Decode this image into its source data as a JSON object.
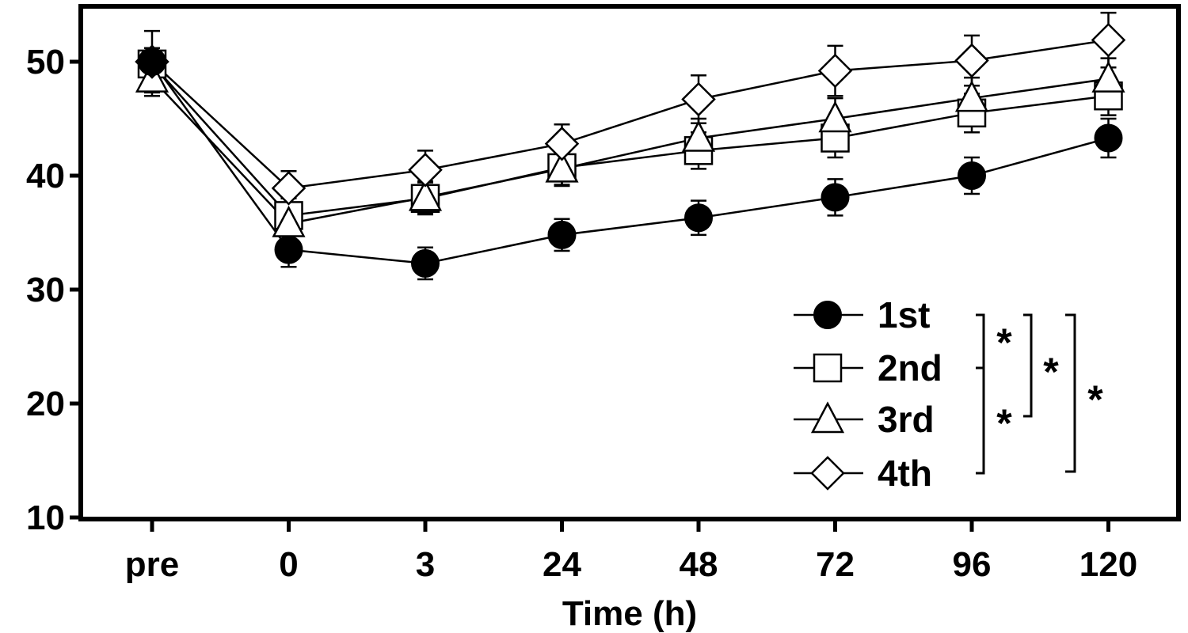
{
  "chart_data": {
    "type": "line",
    "title": "",
    "xlabel": "Time (h)",
    "ylabel": "",
    "categories": [
      "pre",
      "0",
      "3",
      "24",
      "48",
      "72",
      "96",
      "120"
    ],
    "ylim": [
      10,
      55
    ],
    "yticks": [
      10,
      20,
      30,
      40,
      50
    ],
    "grid": false,
    "legend_position": "bottom-right",
    "series": [
      {
        "name": "1st",
        "marker": "circle-filled",
        "values": [
          50.0,
          33.5,
          32.3,
          34.8,
          36.3,
          38.1,
          40.0,
          43.3
        ],
        "errors": [
          1.2,
          1.5,
          1.4,
          1.4,
          1.5,
          1.6,
          1.6,
          1.7
        ]
      },
      {
        "name": "2nd",
        "marker": "square-open",
        "values": [
          49.8,
          36.5,
          38.0,
          40.7,
          42.2,
          43.3,
          45.5,
          47.0
        ],
        "errors": [
          1.4,
          1.5,
          1.4,
          1.5,
          1.6,
          1.7,
          1.7,
          1.7
        ]
      },
      {
        "name": "3rd",
        "marker": "triangle-open",
        "values": [
          48.5,
          35.8,
          38.1,
          40.6,
          43.3,
          45.0,
          46.8,
          48.5
        ],
        "errors": [
          1.5,
          1.5,
          1.4,
          1.5,
          1.7,
          1.8,
          1.8,
          1.8
        ]
      },
      {
        "name": "4th",
        "marker": "diamond-open",
        "values": [
          50.0,
          38.9,
          40.5,
          42.8,
          46.7,
          49.2,
          50.1,
          51.9
        ],
        "errors": [
          2.7,
          1.5,
          1.7,
          1.7,
          2.1,
          2.2,
          2.2,
          2.4
        ]
      }
    ],
    "significance": {
      "symbol": "*",
      "brackets": [
        {
          "from": "1st",
          "to": "2nd",
          "label": "*"
        },
        {
          "from": "1st",
          "to": "3rd",
          "label": "*"
        },
        {
          "from": "1st",
          "to": "4th",
          "label": "*"
        },
        {
          "from": "2nd",
          "to": "4th",
          "label": "*"
        }
      ]
    }
  }
}
